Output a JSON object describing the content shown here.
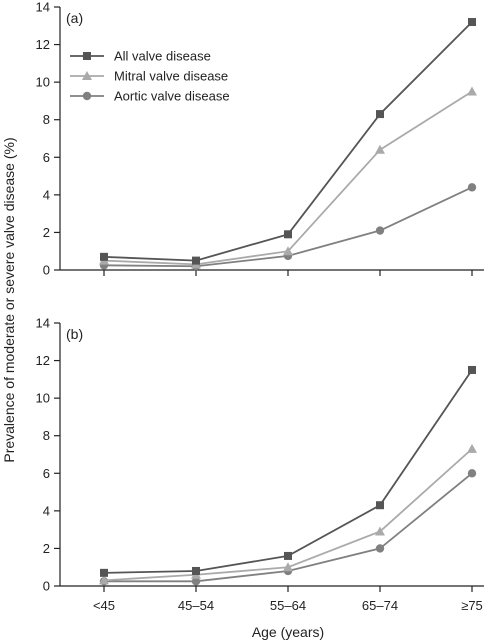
{
  "chart_data": {
    "type": "line",
    "categories": [
      "<45",
      "45–54",
      "55–64",
      "65–74",
      "≥75"
    ],
    "xlabel": "Age (years)",
    "ylabel": "Prevalence of moderate or severe valve disease (%)",
    "ylim": [
      0,
      14
    ],
    "yticks": [
      0,
      2,
      4,
      6,
      8,
      10,
      12,
      14
    ],
    "grid": false,
    "legend_position": "top-left",
    "colors": {
      "All valve disease": "#555555",
      "Mitral valve disease": "#aaaaaa",
      "Aortic valve disease": "#808080"
    },
    "markers": {
      "All valve disease": "square",
      "Mitral valve disease": "triangle",
      "Aortic valve disease": "circle"
    },
    "panels": [
      {
        "label": "(a)",
        "series": [
          {
            "name": "All valve disease",
            "values": [
              0.7,
              0.5,
              1.9,
              8.3,
              13.2
            ]
          },
          {
            "name": "Mitral valve disease",
            "values": [
              0.5,
              0.3,
              1.0,
              6.4,
              9.5
            ]
          },
          {
            "name": "Aortic valve disease",
            "values": [
              0.25,
              0.2,
              0.75,
              2.1,
              4.4
            ]
          }
        ]
      },
      {
        "label": "(b)",
        "series": [
          {
            "name": "All valve disease",
            "values": [
              0.7,
              0.8,
              1.6,
              4.3,
              11.5
            ]
          },
          {
            "name": "Mitral valve disease",
            "values": [
              0.3,
              0.6,
              1.0,
              2.9,
              7.3
            ]
          },
          {
            "name": "Aortic valve disease",
            "values": [
              0.25,
              0.25,
              0.8,
              2.0,
              6.0
            ]
          }
        ]
      }
    ]
  }
}
